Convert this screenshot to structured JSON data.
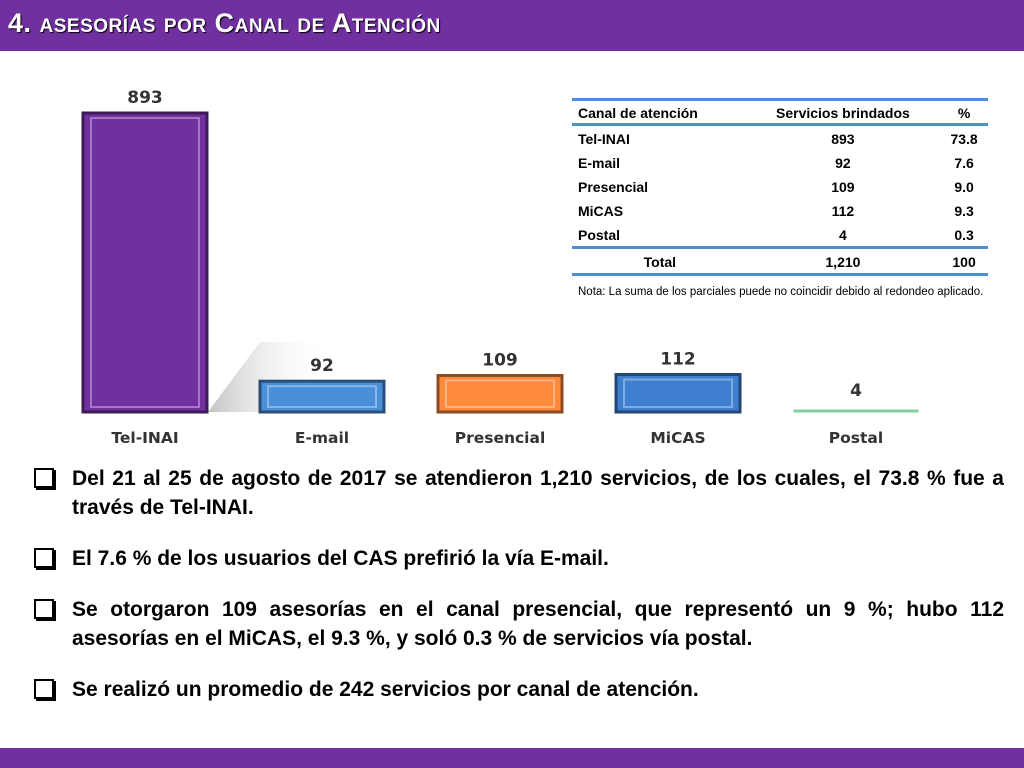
{
  "header": {
    "title": "4. asesorías por Canal de Atención"
  },
  "chart_data": {
    "type": "bar",
    "categories": [
      "Tel-INAI",
      "E-mail",
      "Presencial",
      "MiCAS",
      "Postal"
    ],
    "values": [
      893,
      92,
      109,
      112,
      4
    ],
    "data_labels": [
      "893",
      "92",
      "109",
      "112",
      "4"
    ],
    "colors": [
      "#7030a0",
      "#4a90d9",
      "#ff8a3d",
      "#3f7fd0",
      "#7fd19b"
    ],
    "ylim": [
      0,
      893
    ],
    "title": "",
    "xlabel": "",
    "ylabel": ""
  },
  "table": {
    "headers": [
      "Canal de atención",
      "Servicios brindados",
      "%"
    ],
    "rows": [
      [
        "Tel-INAI",
        "893",
        "73.8"
      ],
      [
        "E-mail",
        "92",
        "7.6"
      ],
      [
        "Presencial",
        "109",
        "9.0"
      ],
      [
        "MiCAS",
        "112",
        "9.3"
      ],
      [
        "Postal",
        "4",
        "0.3"
      ]
    ],
    "total": [
      "Total",
      "1,210",
      "100"
    ]
  },
  "note": "Nota: La suma de los parciales puede no coincidir debido al redondeo aplicado.",
  "bullets": [
    "Del 21 al 25 de agosto de 2017 se atendieron 1,210 servicios, de los cuales, el 73.8 % fue a través de Tel-INAI.",
    "El 7.6 % de los usuarios del CAS prefirió la vía E-mail.",
    "Se otorgaron 109 asesorías en el canal presencial, que representó un 9 %; hubo 112 asesorías en el MiCAS, el 9.3 %, y soló 0.3 % de servicios vía postal.",
    "Se realizó un promedio de 242 servicios por canal de atención."
  ]
}
